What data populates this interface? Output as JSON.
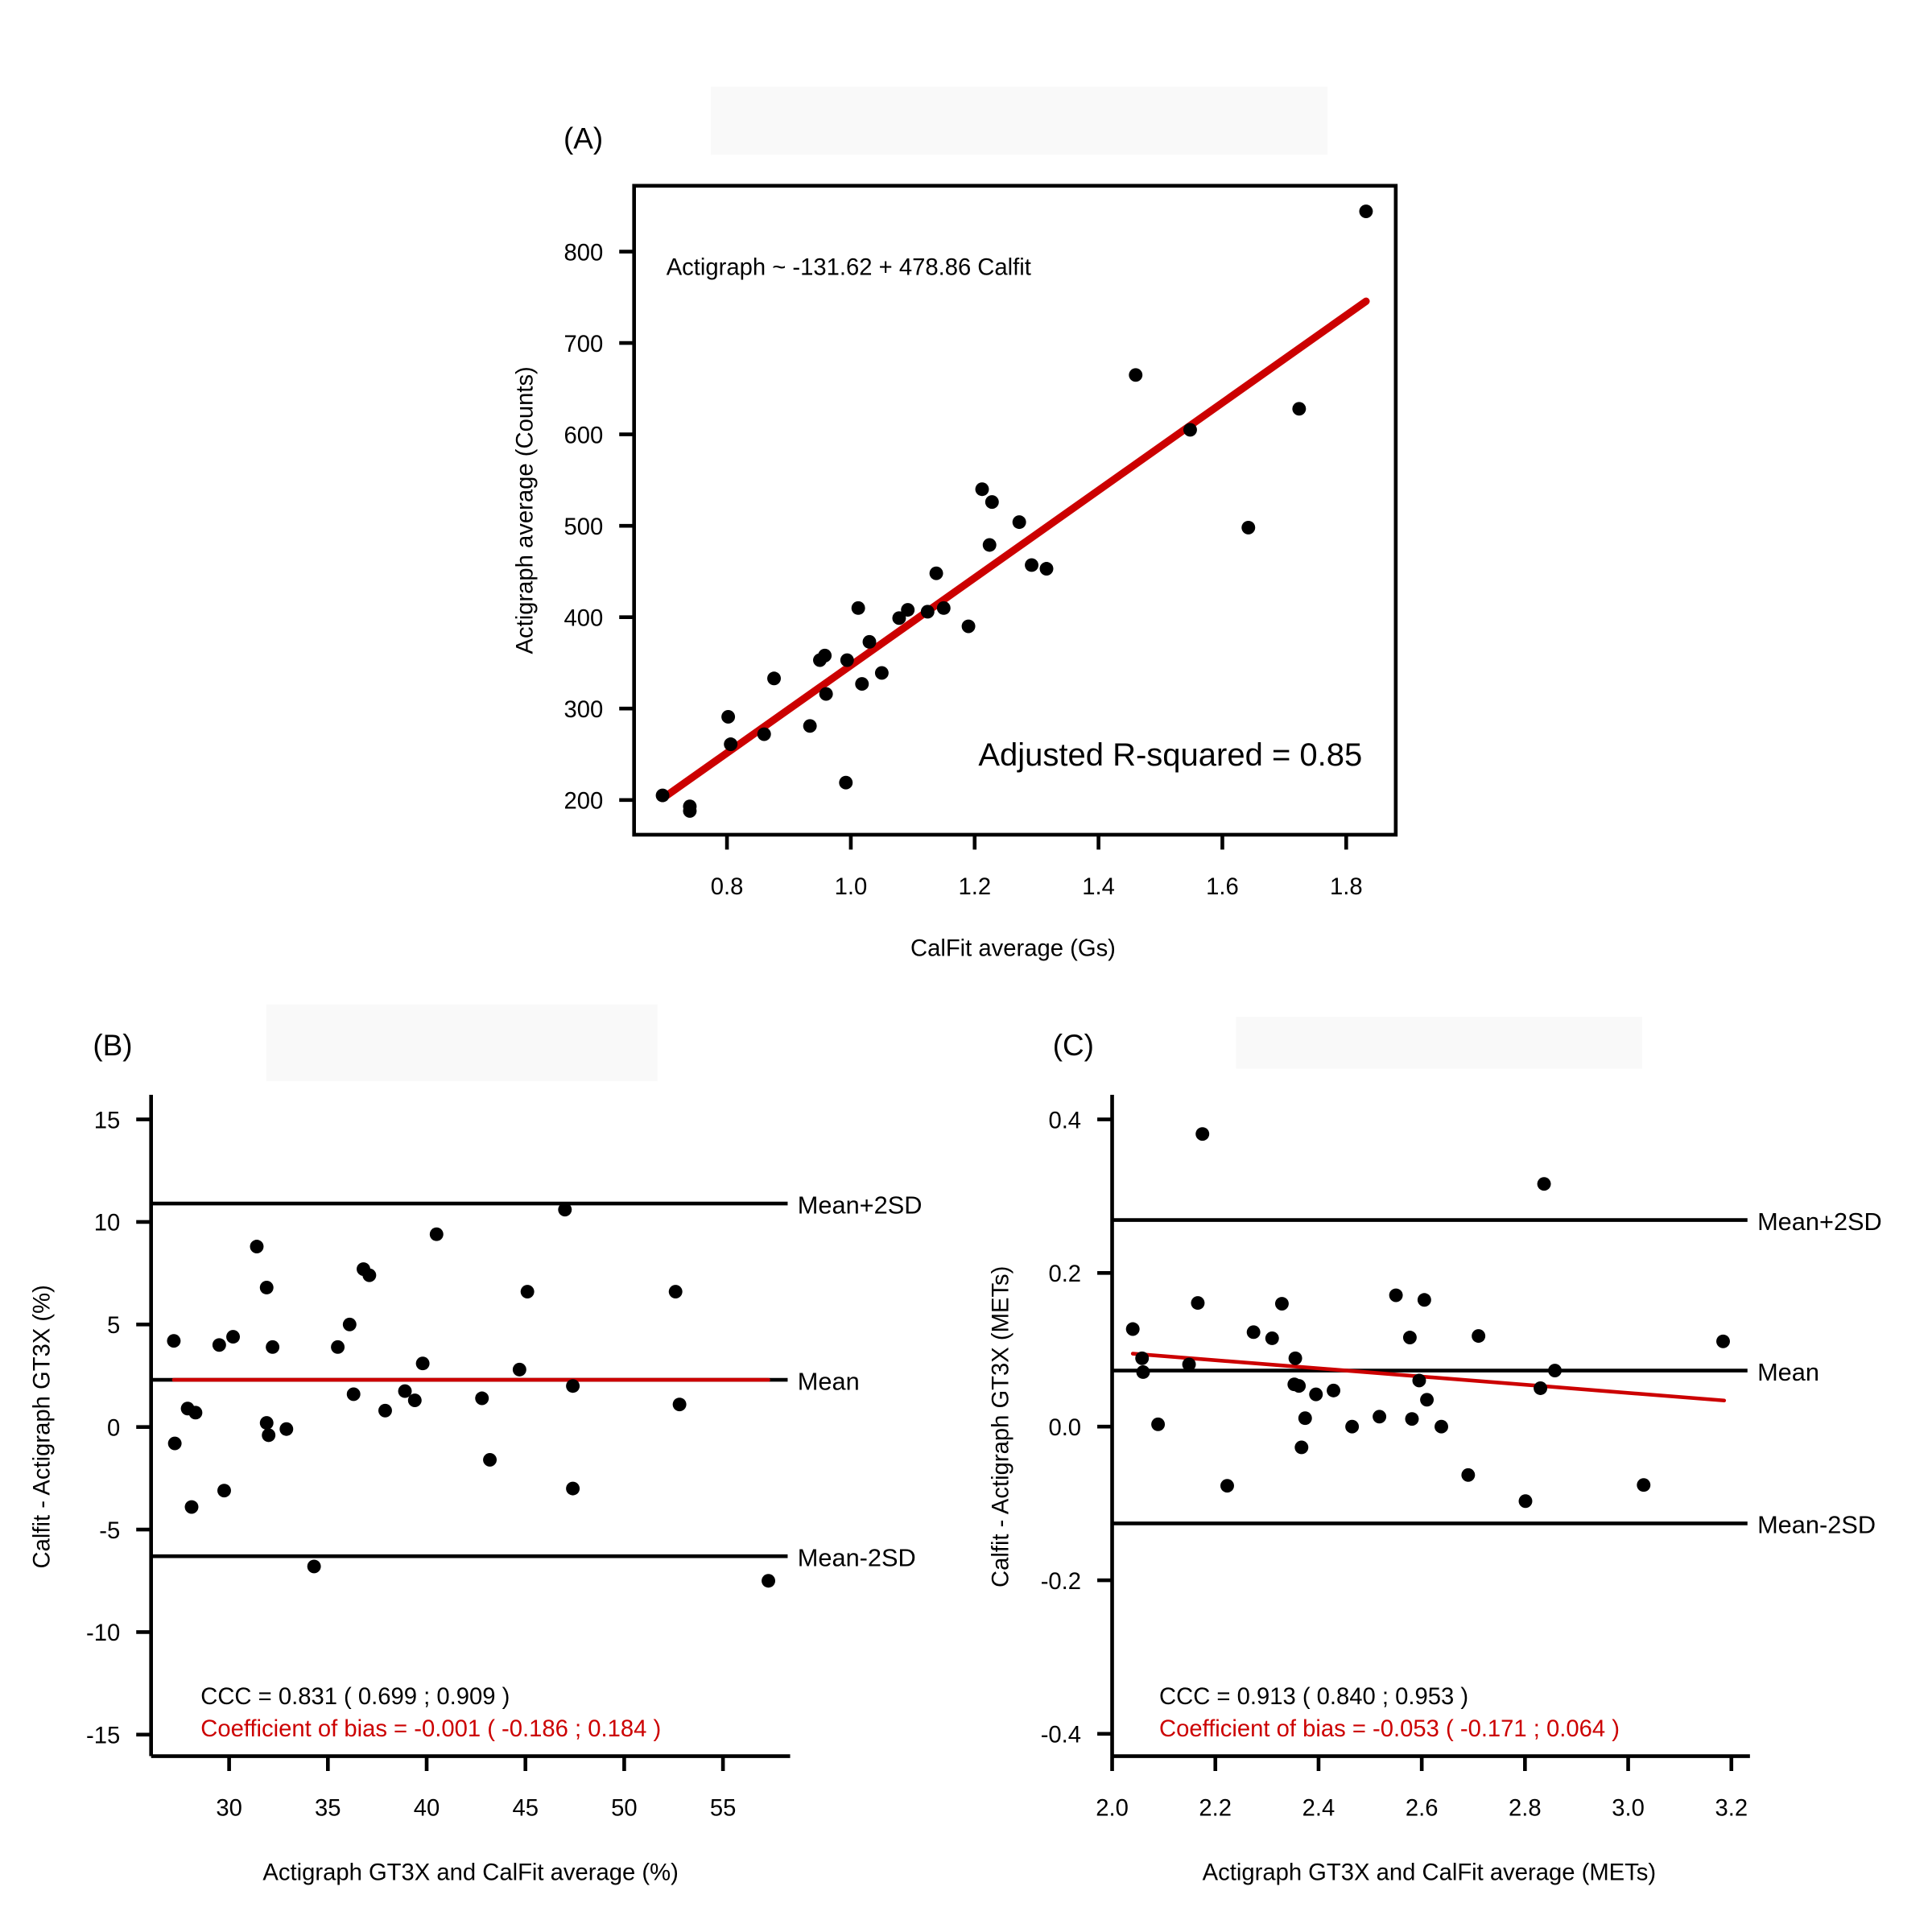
{
  "colors": {
    "points": "#000000",
    "fit_line": "#cc0000",
    "ref_lines": "#000000",
    "bias_text": "#cc0000",
    "placeholder": "#f9f9f9"
  },
  "chart_data": [
    {
      "panel_label": "(A)",
      "type": "scatter",
      "xlabel": "CalFit average (Gs)",
      "ylabel": "Actigraph average (Counts)",
      "xlim": [
        0.65,
        1.88
      ],
      "ylim": [
        162,
        872
      ],
      "xticks": [
        0.8,
        1.0,
        1.2,
        1.4,
        1.6,
        1.8
      ],
      "xtick_labels": [
        "0.8",
        "1.0",
        "1.2",
        "1.4",
        "1.6",
        "1.8"
      ],
      "yticks": [
        200,
        300,
        400,
        500,
        600,
        700,
        800
      ],
      "ytick_labels": [
        "200",
        "300",
        "400",
        "500",
        "600",
        "700",
        "800"
      ],
      "grid": false,
      "annotations": {
        "equation": "Actigraph ~ -131.62 + 478.86 Calfit",
        "r_squared": "Adjusted R-squared =  0.85"
      },
      "fit_line": {
        "intercept": -131.62,
        "slope": 478.86,
        "x_range": [
          0.696,
          1.832
        ]
      },
      "points": [
        [
          0.696,
          205
        ],
        [
          0.74,
          193
        ],
        [
          0.74,
          188
        ],
        [
          0.802,
          291
        ],
        [
          0.806,
          261
        ],
        [
          0.86,
          272
        ],
        [
          0.876,
          333
        ],
        [
          0.934,
          281
        ],
        [
          0.95,
          353
        ],
        [
          0.958,
          358
        ],
        [
          0.96,
          316
        ],
        [
          0.994,
          353
        ],
        [
          0.992,
          219
        ],
        [
          1.012,
          410
        ],
        [
          1.018,
          327
        ],
        [
          1.03,
          373
        ],
        [
          1.05,
          339
        ],
        [
          1.078,
          399
        ],
        [
          1.092,
          408
        ],
        [
          1.124,
          406
        ],
        [
          1.138,
          448
        ],
        [
          1.15,
          410
        ],
        [
          1.19,
          390
        ],
        [
          1.212,
          540
        ],
        [
          1.228,
          526
        ],
        [
          1.224,
          479
        ],
        [
          1.272,
          504
        ],
        [
          1.292,
          457
        ],
        [
          1.316,
          453
        ],
        [
          1.46,
          665
        ],
        [
          1.548,
          605
        ],
        [
          1.642,
          498
        ],
        [
          1.724,
          628
        ],
        [
          1.832,
          844
        ]
      ]
    },
    {
      "panel_label": "(B)",
      "type": "scatter",
      "xlabel": "Actigraph GT3X and CalFit average (%)",
      "ylabel": "Calfit - Actigraph GT3X (%)",
      "xlim": [
        26.05,
        58.4
      ],
      "ylim": [
        -16.05,
        16.2
      ],
      "xticks": [
        30,
        35,
        40,
        45,
        50,
        55
      ],
      "xtick_labels": [
        "30",
        "35",
        "40",
        "45",
        "50",
        "55"
      ],
      "yticks": [
        -15,
        -10,
        -5,
        0,
        5,
        10,
        15
      ],
      "ytick_labels": [
        "-15",
        "-10",
        "-5",
        "0",
        "5",
        "10",
        "15"
      ],
      "grid": false,
      "reference_lines": [
        {
          "label": "Mean+2SD",
          "y": 10.9
        },
        {
          "label": "Mean",
          "y": 2.3
        },
        {
          "label": "Mean-2SD",
          "y": -6.3
        }
      ],
      "fit_line": {
        "points": [
          [
            27.2,
            2.3
          ],
          [
            57.3,
            2.3
          ]
        ]
      },
      "annotations": {
        "ccc": "CCC = 0.831 ( 0.699 ; 0.909 )",
        "bias": "Coefficient of bias = -0.001 ( -0.186 ; 0.184 )"
      },
      "points": [
        [
          27.2,
          4.2
        ],
        [
          27.25,
          -0.8
        ],
        [
          27.9,
          0.9
        ],
        [
          28.1,
          -3.9
        ],
        [
          28.3,
          0.7
        ],
        [
          29.5,
          4.0
        ],
        [
          29.75,
          -3.1
        ],
        [
          30.2,
          4.4
        ],
        [
          31.4,
          8.8
        ],
        [
          31.9,
          6.8
        ],
        [
          31.9,
          0.2
        ],
        [
          32.0,
          -0.4
        ],
        [
          32.2,
          3.9
        ],
        [
          32.9,
          -0.1
        ],
        [
          34.3,
          -6.8
        ],
        [
          35.5,
          3.9
        ],
        [
          36.1,
          5.0
        ],
        [
          36.3,
          1.6
        ],
        [
          36.8,
          7.7
        ],
        [
          37.1,
          7.4
        ],
        [
          37.9,
          0.8
        ],
        [
          38.9,
          1.75
        ],
        [
          39.4,
          1.3
        ],
        [
          39.8,
          3.1
        ],
        [
          40.5,
          9.4
        ],
        [
          42.8,
          1.4
        ],
        [
          43.2,
          -1.6
        ],
        [
          44.7,
          2.8
        ],
        [
          45.1,
          6.6
        ],
        [
          47.0,
          10.6
        ],
        [
          47.4,
          2.0
        ],
        [
          47.4,
          -3.0
        ],
        [
          52.6,
          6.6
        ],
        [
          52.8,
          1.1
        ],
        [
          57.3,
          -7.5
        ]
      ]
    },
    {
      "panel_label": "(C)",
      "type": "scatter",
      "xlabel": "Actigraph GT3X and CalFit average (METs)",
      "ylabel": "Calfit - Actigraph GT3X (METs)",
      "xlim": [
        2.0,
        3.236
      ],
      "ylim": [
        -0.429,
        0.432
      ],
      "xticks": [
        2.0,
        2.2,
        2.4,
        2.6,
        2.8,
        3.0,
        3.2
      ],
      "xtick_labels": [
        "2.0",
        "2.2",
        "2.4",
        "2.6",
        "2.8",
        "3.0",
        "3.2"
      ],
      "yticks": [
        -0.4,
        -0.2,
        0.0,
        0.2,
        0.4
      ],
      "ytick_labels": [
        "-0.4",
        "-0.2",
        "0.0",
        "0.2",
        "0.4"
      ],
      "grid": false,
      "reference_lines": [
        {
          "label": "Mean+2SD",
          "y": 0.269
        },
        {
          "label": "Mean",
          "y": 0.073
        },
        {
          "label": "Mean-2SD",
          "y": -0.126
        }
      ],
      "fit_line": {
        "points": [
          [
            2.04,
            0.095
          ],
          [
            3.186,
            0.034
          ]
        ]
      },
      "annotations": {
        "ccc": "CCC = 0.913 ( 0.840 ; 0.953 )",
        "bias": "Coefficient of bias = -0.053 ( -0.171 ; 0.064 )"
      },
      "points": [
        [
          2.04,
          0.127
        ],
        [
          2.058,
          0.089
        ],
        [
          2.06,
          0.071
        ],
        [
          2.089,
          0.003
        ],
        [
          2.149,
          0.081
        ],
        [
          2.166,
          0.161
        ],
        [
          2.175,
          0.381
        ],
        [
          2.223,
          -0.077
        ],
        [
          2.274,
          0.123
        ],
        [
          2.31,
          0.115
        ],
        [
          2.329,
          0.16
        ],
        [
          2.353,
          0.055
        ],
        [
          2.355,
          0.089
        ],
        [
          2.362,
          0.053
        ],
        [
          2.367,
          -0.027
        ],
        [
          2.374,
          0.011
        ],
        [
          2.395,
          0.042
        ],
        [
          2.429,
          0.047
        ],
        [
          2.465,
          0.0
        ],
        [
          2.518,
          0.013
        ],
        [
          2.55,
          0.171
        ],
        [
          2.577,
          0.116
        ],
        [
          2.581,
          0.01
        ],
        [
          2.595,
          0.06
        ],
        [
          2.605,
          0.165
        ],
        [
          2.61,
          0.035
        ],
        [
          2.638,
          0.0
        ],
        [
          2.69,
          -0.063
        ],
        [
          2.71,
          0.118
        ],
        [
          2.801,
          -0.097
        ],
        [
          2.83,
          0.05
        ],
        [
          2.837,
          0.316
        ],
        [
          2.858,
          0.073
        ],
        [
          3.03,
          -0.076
        ],
        [
          3.184,
          0.111
        ]
      ]
    }
  ]
}
